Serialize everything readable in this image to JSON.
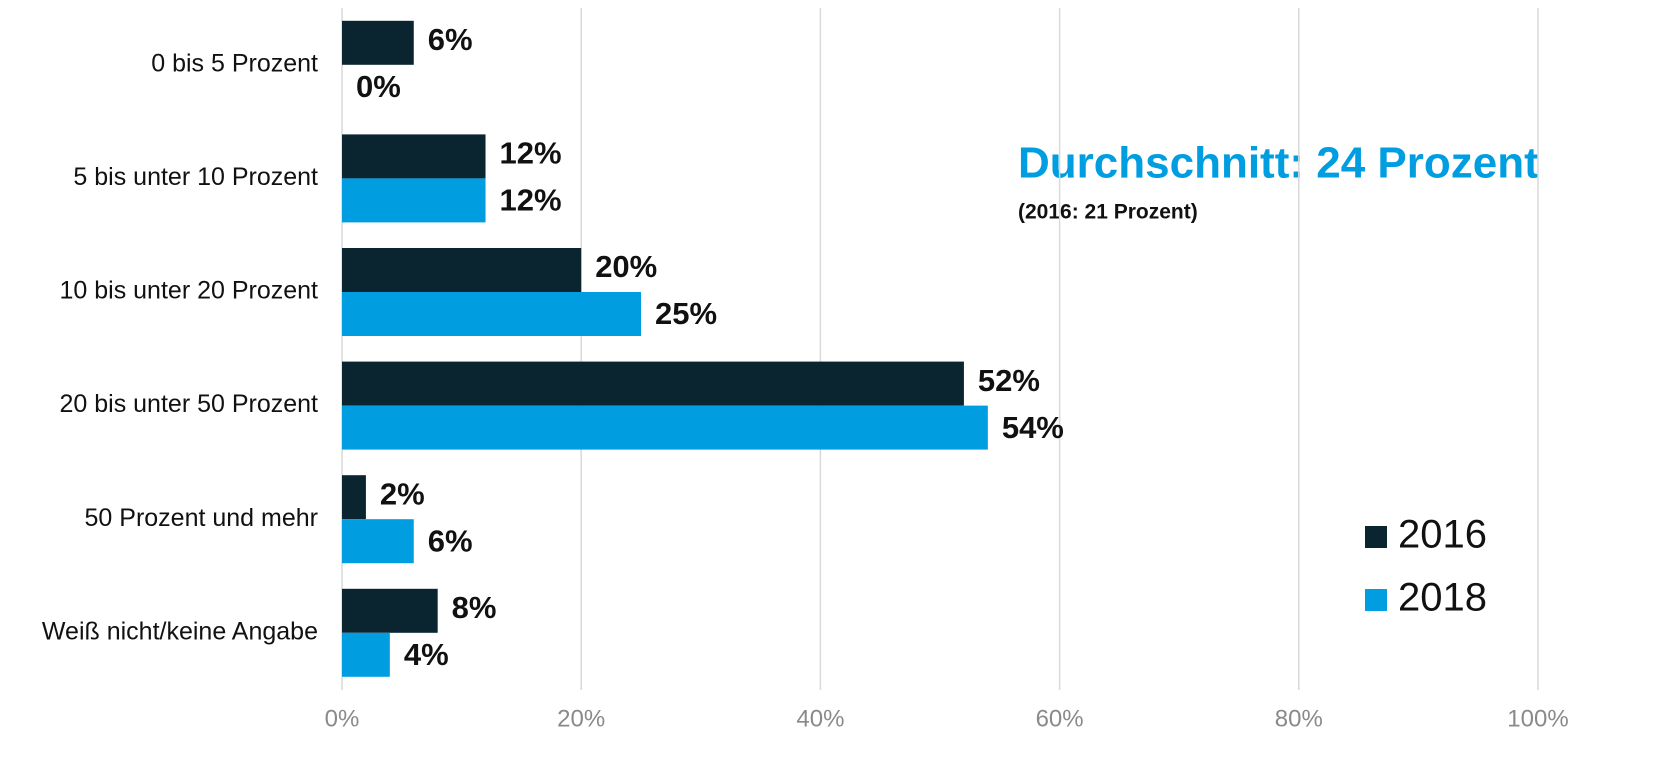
{
  "chart_data": {
    "type": "hbar",
    "categories": [
      "0 bis 5 Prozent",
      "5 bis unter 10 Prozent",
      "10 bis unter 20 Prozent",
      "20 bis unter 50 Prozent",
      "50 Prozent und mehr",
      "Weiß nicht/keine Angabe"
    ],
    "series": [
      {
        "name": "2016",
        "color": "#0a2530",
        "values": [
          6,
          12,
          20,
          52,
          2,
          8
        ],
        "value_labels": [
          "6%",
          "12%",
          "20%",
          "52%",
          "2%",
          "8%"
        ]
      },
      {
        "name": "2018",
        "color": "#009ee0",
        "values": [
          0,
          12,
          25,
          54,
          6,
          4
        ],
        "value_labels": [
          "0%",
          "12%",
          "25%",
          "54%",
          "6%",
          "4%"
        ]
      }
    ],
    "xlim": [
      0,
      100
    ],
    "xticks": [
      {
        "value": 0,
        "label": "0%"
      },
      {
        "value": 20,
        "label": "20%"
      },
      {
        "value": 40,
        "label": "40%"
      },
      {
        "value": 60,
        "label": "60%"
      },
      {
        "value": 80,
        "label": "80%"
      },
      {
        "value": 100,
        "label": "100%"
      }
    ],
    "grid": true,
    "legend": "lower right",
    "annotations": [
      "Durchschnitt: 24 Prozent",
      "(2016: 21 Prozent)"
    ]
  }
}
